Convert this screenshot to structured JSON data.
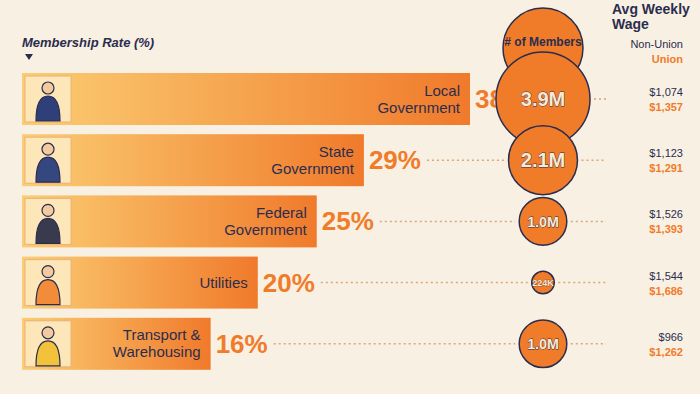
{
  "chart_data": {
    "type": "bar",
    "orientation": "horizontal",
    "xlabel": "Membership Rate (%)",
    "categories": [
      "Local Government",
      "State Government",
      "Federal Government",
      "Utilities",
      "Transport & Warehousing"
    ],
    "values": [
      38,
      29,
      25,
      20,
      16
    ],
    "value_labels": [
      "38%",
      "29%",
      "25%",
      "20%",
      "16%"
    ],
    "data_labels": true,
    "xlim": [
      0,
      38
    ],
    "tick_labels": false,
    "grid": false,
    "members": {
      "title": "# of Members",
      "values": [
        3900000,
        2100000,
        1000000,
        224000,
        1000000
      ],
      "value_labels": [
        "3.9M",
        "2.1M",
        "1.0M",
        "224K",
        "1.0M"
      ]
    },
    "wages": {
      "title": "Avg Weekly Wage",
      "series": [
        {
          "name": "Non-Union",
          "color": "#2b2d4f",
          "values": [
            1074,
            1123,
            1526,
            1544,
            966
          ],
          "value_labels": [
            "$1,074",
            "$1,123",
            "$1,526",
            "$1,544",
            "$966"
          ]
        },
        {
          "name": "Union",
          "color": "#f07c2a",
          "values": [
            1357,
            1291,
            1393,
            1686,
            1262
          ],
          "value_labels": [
            "$1,357",
            "$1,291",
            "$1,393",
            "$1,686",
            "$1,262"
          ]
        }
      ]
    }
  }
}
